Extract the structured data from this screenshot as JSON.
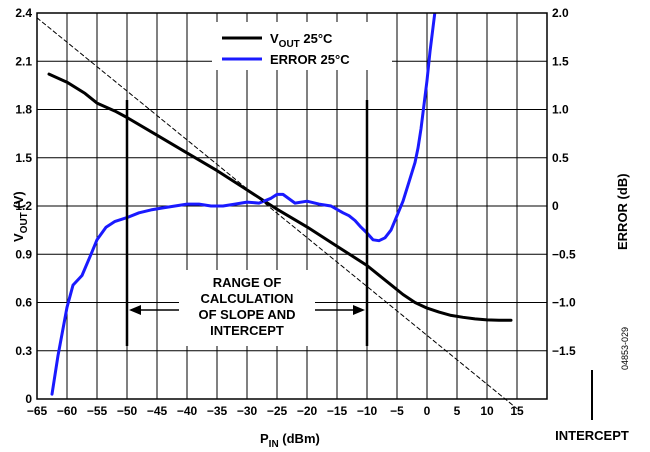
{
  "chart_data": {
    "type": "line",
    "xlabel_main": "P",
    "xlabel_sub": "IN",
    "xlabel_unit": " (dBm)",
    "ylabel_left_main": "V",
    "ylabel_left_sub": "OUT",
    "ylabel_left_unit": " (V)",
    "ylabel_right": "ERROR (dB)",
    "xlim": [
      -65,
      20
    ],
    "ylim_left": [
      0,
      2.4
    ],
    "ylim_right": [
      -2.0,
      2.0
    ],
    "grid": true,
    "legend_placement": "top-center",
    "x_ticks": [
      "−65",
      "−60",
      "−55",
      "−50",
      "−45",
      "−40",
      "−35",
      "−30",
      "−25",
      "−20",
      "−15",
      "−10",
      "−5",
      "0",
      "5",
      "10",
      "15"
    ],
    "y_left_ticks": [
      "0",
      "0.3",
      "0.6",
      "0.9",
      "1.2",
      "1.5",
      "1.8",
      "2.1",
      "2.4"
    ],
    "y_right_ticks": [
      "−1.5",
      "−1.0",
      "−0.5",
      "0",
      "0.5",
      "1.0",
      "1.5",
      "2.0"
    ],
    "series": [
      {
        "name_main": "V",
        "name_sub": "OUT",
        "name_rest": " 25°C",
        "axis": "left",
        "color": "#000000",
        "x": [
          -63,
          -60,
          -57,
          -55,
          -52,
          -50,
          -45,
          -40,
          -35,
          -30,
          -25,
          -20,
          -15,
          -10,
          -8,
          -6,
          -4,
          -2,
          0,
          2,
          4,
          6,
          8,
          10,
          12,
          14
        ],
        "y": [
          2.02,
          1.97,
          1.9,
          1.84,
          1.79,
          1.75,
          1.64,
          1.53,
          1.42,
          1.3,
          1.18,
          1.07,
          0.95,
          0.83,
          0.77,
          0.71,
          0.65,
          0.6,
          0.565,
          0.54,
          0.52,
          0.508,
          0.498,
          0.492,
          0.49,
          0.49
        ]
      },
      {
        "name": "ERROR 25°C",
        "axis": "right",
        "color": "#1a1aff",
        "x": [
          -62.5,
          -61.5,
          -60,
          -59,
          -57.5,
          -56,
          -55,
          -53.5,
          -52,
          -50,
          -48,
          -46,
          -44,
          -42,
          -40,
          -38,
          -36,
          -34,
          -32,
          -30,
          -28,
          -26,
          -25,
          -24,
          -22,
          -20,
          -18,
          -16,
          -14,
          -13,
          -12,
          -11,
          -10,
          -9,
          -8,
          -7,
          -6,
          -5,
          -4,
          -3,
          -2,
          -1.5,
          -1,
          -0.5,
          0,
          0.5,
          1,
          1.3
        ],
        "y": [
          -1.95,
          -1.55,
          -1.05,
          -0.82,
          -0.72,
          -0.5,
          -0.35,
          -0.22,
          -0.16,
          -0.12,
          -0.07,
          -0.04,
          -0.02,
          0.0,
          0.02,
          0.02,
          0.0,
          0.0,
          0.02,
          0.04,
          0.03,
          0.08,
          0.12,
          0.12,
          0.03,
          0.05,
          0.02,
          0.0,
          -0.07,
          -0.1,
          -0.15,
          -0.22,
          -0.28,
          -0.35,
          -0.36,
          -0.33,
          -0.25,
          -0.1,
          0.05,
          0.25,
          0.45,
          0.6,
          0.8,
          1.05,
          1.3,
          1.6,
          1.85,
          2.0
        ]
      },
      {
        "name": "",
        "axis": "left",
        "style": "dashed",
        "color": "#000000",
        "x": [
          -65,
          15
        ],
        "y": [
          2.37,
          -0.06
        ]
      }
    ],
    "annotations": {
      "range_lines_x": [
        -50,
        -10
      ],
      "range_text": [
        "RANGE OF",
        "CALCULATION",
        "OF SLOPE AND",
        "INTERCEPT"
      ],
      "intercept_label": "INTERCEPT",
      "figure_id": "04853-029"
    }
  }
}
